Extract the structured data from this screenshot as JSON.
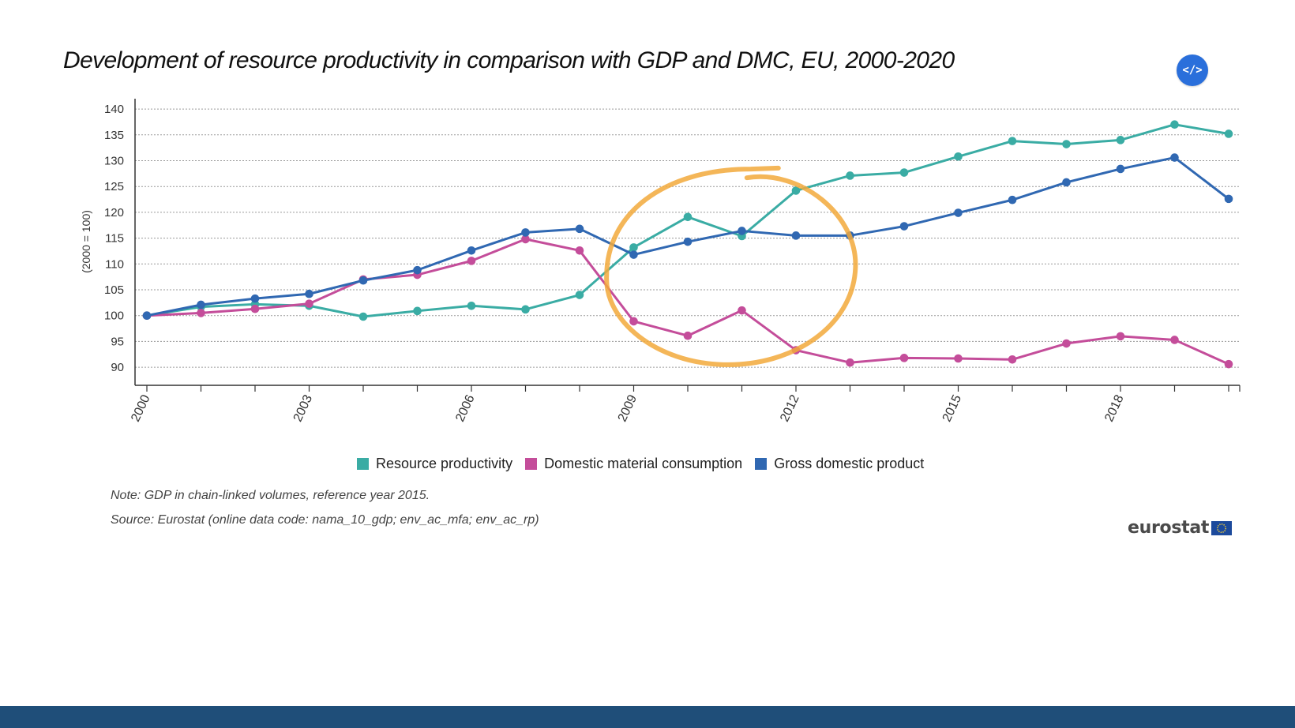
{
  "header": {
    "title": "Development of resource productivity in comparison with GDP and DMC, EU, 2000-2020",
    "embed_label": "</>"
  },
  "chart_data": {
    "type": "line",
    "title": "Development of resource productivity in comparison with GDP and DMC, EU, 2000-2020",
    "xlabel": "",
    "ylabel": "(2000 = 100)",
    "x": [
      2000,
      2001,
      2002,
      2003,
      2004,
      2005,
      2006,
      2007,
      2008,
      2009,
      2010,
      2011,
      2012,
      2013,
      2014,
      2015,
      2016,
      2017,
      2018,
      2019,
      2020
    ],
    "x_tick_labels": [
      "2000",
      "2003",
      "2006",
      "2009",
      "2012",
      "2015",
      "2018"
    ],
    "y_ticks": [
      90,
      95,
      100,
      105,
      110,
      115,
      120,
      125,
      130,
      135,
      140
    ],
    "ylim": [
      86.5,
      142
    ],
    "grid": "horizontal dotted",
    "legend_position": "bottom",
    "series": [
      {
        "name": "Resource productivity",
        "color": "#3aaca4",
        "values": [
          100.0,
          101.7,
          102.2,
          101.9,
          99.8,
          100.9,
          101.9,
          101.2,
          104.0,
          113.2,
          119.1,
          115.4,
          124.2,
          127.1,
          127.7,
          130.8,
          133.8,
          133.2,
          134.0,
          137.0,
          135.2
        ]
      },
      {
        "name": "Domestic material consumption",
        "color": "#c44d9a",
        "values": [
          100.0,
          100.5,
          101.3,
          102.3,
          107.0,
          107.9,
          110.6,
          114.8,
          112.6,
          98.9,
          96.1,
          101.0,
          93.3,
          90.9,
          91.8,
          91.7,
          91.5,
          94.6,
          96.0,
          95.3,
          90.6
        ]
      },
      {
        "name": "Gross domestic product",
        "color": "#3068b2",
        "values": [
          100.0,
          102.1,
          103.3,
          104.2,
          106.8,
          108.8,
          112.6,
          116.1,
          116.8,
          111.8,
          114.3,
          116.4,
          115.5,
          115.5,
          117.3,
          119.9,
          122.4,
          125.8,
          128.4,
          130.6,
          122.6
        ]
      }
    ],
    "highlight_annotation": {
      "shape": "hand-drawn ellipse",
      "color": "#f2a93b",
      "x_range": [
        2008.5,
        2013.1
      ],
      "y_range": [
        90.5,
        128
      ]
    }
  },
  "footer": {
    "note": "Note: GDP in chain-linked volumes, reference year 2015.",
    "source": "Source: Eurostat (online data code: nama_10_gdp; env_ac_mfa; env_ac_rp)",
    "logo_text": "eurostat",
    "bar_color": "#1f4e79"
  }
}
